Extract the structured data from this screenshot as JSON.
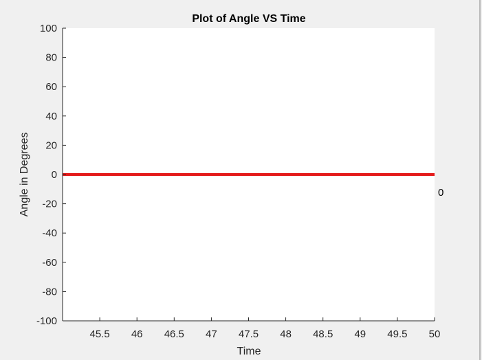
{
  "chart_data": {
    "type": "line",
    "title": "Plot of Angle VS Time",
    "xlabel": "Time",
    "ylabel": "Angle in Degrees",
    "xlim": [
      45.0,
      50.0
    ],
    "ylim": [
      -100,
      100
    ],
    "xticks": [
      45.5,
      46,
      46.5,
      47,
      47.5,
      48,
      48.5,
      49,
      49.5,
      50
    ],
    "xtick_labels": [
      "45.5",
      "46",
      "46.5",
      "47",
      "47.5",
      "48",
      "48.5",
      "49",
      "49.5",
      "50"
    ],
    "yticks": [
      100,
      80,
      60,
      40,
      20,
      0,
      -20,
      -40,
      -60,
      -80,
      -100
    ],
    "ytick_labels": [
      "100",
      "80",
      "60",
      "40",
      "20",
      "0",
      "-20",
      "-40",
      "-60",
      "-80",
      "-100"
    ],
    "grid": false,
    "series": [
      {
        "x": [
          45.0,
          50.0
        ],
        "y": [
          0,
          0
        ],
        "color": "#e41a1a"
      }
    ],
    "annotations": [
      {
        "text": "0"
      }
    ]
  },
  "colors": {
    "figure_background": "#f0f0f0",
    "plot_background": "#ffffff",
    "axis": "#262626",
    "line": "#e41a1a"
  }
}
